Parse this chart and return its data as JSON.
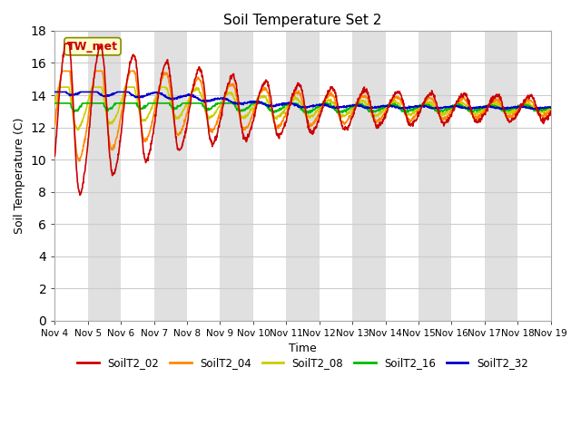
{
  "title": "Soil Temperature Set 2",
  "xlabel": "Time",
  "ylabel": "Soil Temperature (C)",
  "ylim": [
    0,
    18
  ],
  "yticks": [
    0,
    2,
    4,
    6,
    8,
    10,
    12,
    14,
    16,
    18
  ],
  "series_colors": {
    "SoilT2_02": "#cc0000",
    "SoilT2_04": "#ff8800",
    "SoilT2_08": "#cccc00",
    "SoilT2_16": "#00bb00",
    "SoilT2_32": "#0000cc"
  },
  "annotation_label": "TW_met",
  "annotation_color": "#cc0000",
  "annotation_bg": "#ffffcc",
  "annotation_border": "#888800",
  "band_color": "#e0e0e0",
  "background_color": "#ffffff",
  "x_day_labels": [
    "Nov 4",
    "Nov 5",
    "Nov 6",
    "Nov 7",
    "Nov 8",
    "Nov 9",
    "Nov 10",
    "Nov 11",
    "Nov 12",
    "Nov 13",
    "Nov 14",
    "Nov 15",
    "Nov 16",
    "Nov 17",
    "Nov 18",
    "Nov 19"
  ]
}
